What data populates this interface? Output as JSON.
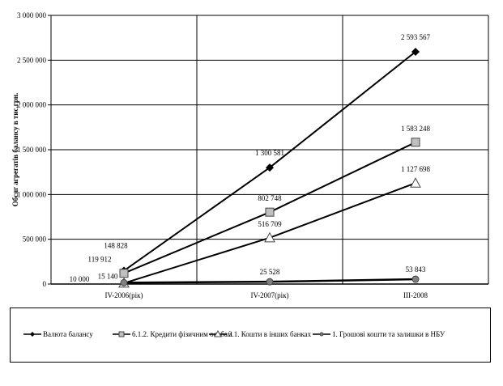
{
  "chart_data": {
    "type": "line",
    "title": "",
    "xlabel": "",
    "ylabel": "Обсяг агрегатів балансу в тис.грн.",
    "ylim": [
      0,
      3000000
    ],
    "yticks": [
      "0",
      "500 000",
      "1 000 000",
      "1 500 000",
      "2 000 000",
      "2 500 000",
      "3 000 000"
    ],
    "categories": [
      "IV-2006(рік)",
      "IV-2007(рік)",
      "III-2008"
    ],
    "grid": true,
    "legend_position": "bottom",
    "series": [
      {
        "name": "Валюта балансу",
        "marker": "diamond",
        "color": "#000000",
        "values": [
          148828,
          1300581,
          2593567
        ],
        "labels": [
          "148 828",
          "1 300 581",
          "2 593 567"
        ]
      },
      {
        "name": "6.1.2. Кредити фізичним особам",
        "marker": "square",
        "color": "#c0c0c0",
        "values": [
          119912,
          802748,
          1583248
        ],
        "labels": [
          "119 912",
          "802 748",
          "1 583 248"
        ]
      },
      {
        "name": "3.1. Кошти в інших банках",
        "marker": "triangle",
        "color": "#ffffff",
        "values": [
          10000,
          516709,
          1127698
        ],
        "labels": [
          "10 000",
          "516 709",
          "1 127 698"
        ]
      },
      {
        "name": "1. Грошові кошти та залишки в НБУ",
        "marker": "circle",
        "color": "#808080",
        "values": [
          15140,
          25528,
          53843
        ],
        "labels": [
          "15 140",
          "25 528",
          "53 843"
        ]
      }
    ]
  }
}
